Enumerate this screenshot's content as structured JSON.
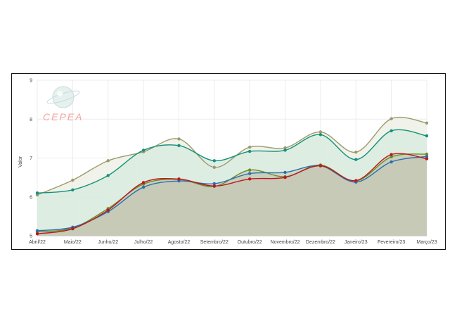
{
  "logo": {
    "text": "CEPEA"
  },
  "chart_data": {
    "type": "area",
    "title": "",
    "xlabel": "",
    "ylabel": "Valor",
    "ylim": [
      5,
      9
    ],
    "yticks": [
      "5",
      "6",
      "7",
      "8",
      "9"
    ],
    "categories": [
      "Abril/22",
      "Maio/22",
      "Junho/22",
      "Julho/22",
      "Agosto/22",
      "Setembro/22",
      "Outubro/22",
      "Novembro/22",
      "Dezembro/22",
      "Janeiro/23",
      "Fevereiro/23",
      "Março/23"
    ],
    "grid": true,
    "legend": "none",
    "series": [
      {
        "color": "#9a9a6c",
        "fill": "#eef1e6",
        "values": [
          6.05,
          6.43,
          6.93,
          7.16,
          7.49,
          6.76,
          7.28,
          7.26,
          7.67,
          7.15,
          8.01,
          7.9
        ]
      },
      {
        "color": "#14917d",
        "fill": "#d9ebe0",
        "values": [
          6.1,
          6.18,
          6.55,
          7.2,
          7.32,
          6.93,
          7.17,
          7.2,
          7.6,
          6.96,
          7.7,
          7.57
        ]
      },
      {
        "color": "#6b8e23",
        "fill": "#c6cbb2",
        "values": [
          5.1,
          5.2,
          5.7,
          6.33,
          6.45,
          6.27,
          6.69,
          6.52,
          6.82,
          6.41,
          7.03,
          7.1
        ]
      },
      {
        "color": "#2c6fb0",
        "fill": "#c3c7b3",
        "values": [
          5.13,
          5.22,
          5.62,
          6.25,
          6.41,
          6.34,
          6.6,
          6.63,
          6.8,
          6.38,
          6.9,
          7.04
        ]
      },
      {
        "color": "#c0161c",
        "fill": "#c3c7b3",
        "values": [
          5.05,
          5.18,
          5.66,
          6.37,
          6.46,
          6.28,
          6.46,
          6.5,
          6.8,
          6.42,
          7.09,
          6.98
        ]
      }
    ]
  }
}
